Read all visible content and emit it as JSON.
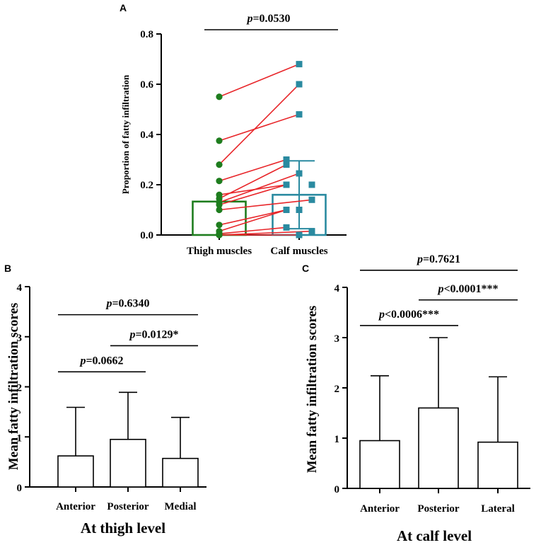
{
  "panels": {
    "a": "A",
    "b": "B",
    "c": "C"
  },
  "chart_data": [
    {
      "id": "A",
      "type": "scatter",
      "title": "",
      "ylabel": "Proportion of fatty infiltration",
      "categories": [
        "Thigh muscles",
        "Calf muscles"
      ],
      "yticks": [
        "0.0",
        "0.2",
        "0.4",
        "0.6",
        "0.8"
      ],
      "ylim": [
        0,
        0.8
      ],
      "series": [
        {
          "name": "Thigh muscles",
          "color": "#1e7d1e",
          "marker": "circle",
          "bar_mean": 0.133,
          "error": null,
          "values": [
            0.55,
            0.375,
            0.28,
            0.215,
            0.16,
            0.145,
            0.13,
            0.12,
            0.1,
            0.04,
            0.015,
            0.005,
            0.0,
            0.0
          ]
        },
        {
          "name": "Calf muscles",
          "color": "#2a8aa0",
          "marker": "square",
          "bar_mean": 0.16,
          "error": 0.135,
          "values": [
            0.68,
            0.6,
            0.48,
            0.3,
            0.28,
            0.245,
            0.2,
            0.2,
            0.14,
            0.1,
            0.1,
            0.03,
            0.015,
            0.0
          ]
        }
      ],
      "pairs": [
        [
          0.55,
          0.68
        ],
        [
          0.375,
          0.48
        ],
        [
          0.28,
          0.6
        ],
        [
          0.215,
          0.3
        ],
        [
          0.16,
          0.2
        ],
        [
          0.145,
          0.28
        ],
        [
          0.13,
          0.245
        ],
        [
          0.12,
          0.2
        ],
        [
          0.1,
          0.14
        ],
        [
          0.04,
          0.1
        ],
        [
          0.015,
          0.1
        ],
        [
          0.005,
          0.03
        ],
        [
          0.0,
          0.015
        ],
        [
          0.0,
          0.0
        ]
      ],
      "line_color": "#e8262a",
      "annotation": {
        "prefix": "p",
        "text": "=0.0530"
      }
    },
    {
      "id": "B",
      "type": "bar",
      "ylabel": "Mean fatty infiltration scores",
      "xlabel": "At thigh level",
      "categories": [
        "Anterior",
        "Posterior",
        "Medial"
      ],
      "values": [
        0.62,
        0.95,
        0.57
      ],
      "errors": [
        0.97,
        0.94,
        0.82
      ],
      "yticks": [
        "0",
        "1",
        "2",
        "3",
        "4"
      ],
      "ylim": [
        0,
        4
      ],
      "comparisons": [
        {
          "from": 0,
          "to": 2,
          "prefix": "p",
          "text": "=0.6340",
          "level": 3.44
        },
        {
          "from": 1,
          "to": 2,
          "prefix": "p",
          "text": "=0.0129*",
          "level": 2.82
        },
        {
          "from": 0,
          "to": 1,
          "prefix": "p",
          "text": "=0.0662",
          "level": 2.3
        }
      ]
    },
    {
      "id": "C",
      "type": "bar",
      "ylabel": "Mean fatty infiltration scores",
      "xlabel": "At calf level",
      "categories": [
        "Anterior",
        "Posterior",
        "Lateral"
      ],
      "values": [
        0.95,
        1.6,
        0.92
      ],
      "errors": [
        1.29,
        1.4,
        1.3
      ],
      "yticks": [
        "0",
        "1",
        "2",
        "3",
        "4"
      ],
      "ylim": [
        0,
        4
      ],
      "comparisons": [
        {
          "from": 0,
          "to": 2,
          "prefix": "p",
          "text": "=0.7621",
          "level": 4.34
        },
        {
          "from": 1,
          "to": 2,
          "prefix": "p",
          "text": "<0.0001***",
          "level": 3.75
        },
        {
          "from": 0,
          "to": 1,
          "prefix": "p",
          "text": "<0.0006***",
          "level": 3.24
        }
      ]
    }
  ]
}
